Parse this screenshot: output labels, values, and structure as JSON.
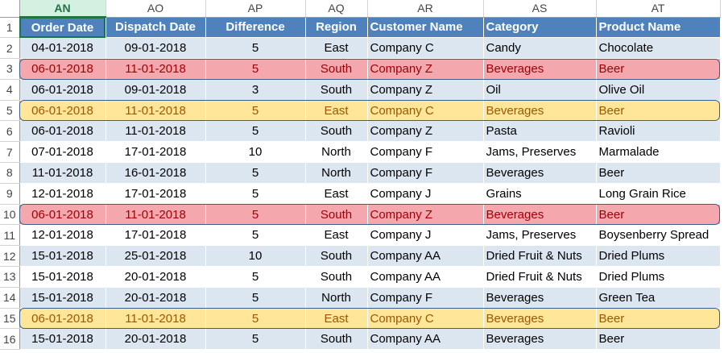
{
  "columns": [
    "AN",
    "AO",
    "AP",
    "AQ",
    "AR",
    "AS",
    "AT"
  ],
  "active_column": "AN",
  "headers": [
    "Order Date",
    "Dispatch Date",
    "Difference",
    "Region",
    "Customer Name",
    "Category",
    "Product Name"
  ],
  "rows": [
    {
      "num": "2",
      "cells": [
        "04-01-2018",
        "09-01-2018",
        "5",
        "East",
        "Company C",
        "Candy",
        "Chocolate"
      ],
      "highlight": "none"
    },
    {
      "num": "3",
      "cells": [
        "06-01-2018",
        "11-01-2018",
        "5",
        "South",
        "Company Z",
        "Beverages",
        "Beer"
      ],
      "highlight": "red"
    },
    {
      "num": "4",
      "cells": [
        "06-01-2018",
        "09-01-2018",
        "3",
        "South",
        "Company Z",
        "Oil",
        "Olive Oil"
      ],
      "highlight": "none"
    },
    {
      "num": "5",
      "cells": [
        "06-01-2018",
        "11-01-2018",
        "5",
        "East",
        "Company C",
        "Beverages",
        "Beer"
      ],
      "highlight": "yellow"
    },
    {
      "num": "6",
      "cells": [
        "06-01-2018",
        "11-01-2018",
        "5",
        "South",
        "Company Z",
        "Pasta",
        "Ravioli"
      ],
      "highlight": "none"
    },
    {
      "num": "7",
      "cells": [
        "07-01-2018",
        "17-01-2018",
        "10",
        "North",
        "Company F",
        "Jams, Preserves",
        "Marmalade"
      ],
      "highlight": "none"
    },
    {
      "num": "8",
      "cells": [
        "11-01-2018",
        "16-01-2018",
        "5",
        "North",
        "Company F",
        "Beverages",
        "Beer"
      ],
      "highlight": "none"
    },
    {
      "num": "9",
      "cells": [
        "12-01-2018",
        "17-01-2018",
        "5",
        "East",
        "Company J",
        "Grains",
        "Long Grain Rice"
      ],
      "highlight": "none"
    },
    {
      "num": "10",
      "cells": [
        "06-01-2018",
        "11-01-2018",
        "5",
        "South",
        "Company Z",
        "Beverages",
        "Beer"
      ],
      "highlight": "red"
    },
    {
      "num": "11",
      "cells": [
        "12-01-2018",
        "17-01-2018",
        "5",
        "East",
        "Company J",
        "Jams, Preserves",
        "Boysenberry Spread"
      ],
      "highlight": "none"
    },
    {
      "num": "12",
      "cells": [
        "15-01-2018",
        "25-01-2018",
        "10",
        "South",
        "Company AA",
        "Dried Fruit & Nuts",
        "Dried Plums"
      ],
      "highlight": "none"
    },
    {
      "num": "13",
      "cells": [
        "15-01-2018",
        "20-01-2018",
        "5",
        "South",
        "Company AA",
        "Dried Fruit & Nuts",
        "Dried Plums"
      ],
      "highlight": "none"
    },
    {
      "num": "14",
      "cells": [
        "15-01-2018",
        "20-01-2018",
        "5",
        "North",
        "Company F",
        "Beverages",
        "Green Tea"
      ],
      "highlight": "none"
    },
    {
      "num": "15",
      "cells": [
        "06-01-2018",
        "11-01-2018",
        "5",
        "East",
        "Company C",
        "Beverages",
        "Beer"
      ],
      "highlight": "yellow"
    },
    {
      "num": "16",
      "cells": [
        "15-01-2018",
        "20-01-2018",
        "5",
        "South",
        "Company AA",
        "Beverages",
        "Beer"
      ],
      "highlight": "none"
    }
  ],
  "colors": {
    "header_fill": "#4f81bd",
    "band_fill": "#dce6f1",
    "duplicate_red_fill": "#f4a7ad",
    "duplicate_red_text": "#9c0006",
    "duplicate_yellow_fill": "#ffe699",
    "duplicate_yellow_text": "#9c5700",
    "active_cell_border": "#217346"
  }
}
